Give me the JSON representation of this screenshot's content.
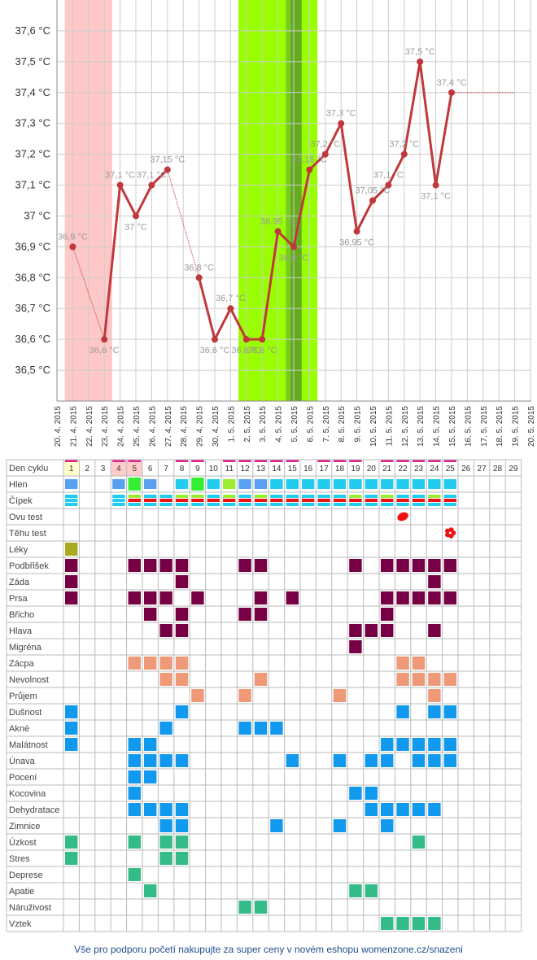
{
  "chart_data": {
    "type": "line",
    "ylim": [
      36.4,
      37.7
    ],
    "y_ticks": [
      "36,5 °C",
      "36,6 °C",
      "36,7 °C",
      "36,8 °C",
      "36,9 °C",
      "37 °C",
      "37,1 °C",
      "37,2 °C",
      "37,3 °C",
      "37,4 °C",
      "37,5 °C",
      "37,6 °C"
    ],
    "y_tick_values": [
      36.5,
      36.6,
      36.7,
      36.8,
      36.9,
      37.0,
      37.1,
      37.2,
      37.3,
      37.4,
      37.5,
      37.6
    ],
    "dates": [
      "20. 4. 2015",
      "21. 4. 2015",
      "22. 4. 2015",
      "23. 4. 2015",
      "24. 4. 2015",
      "25. 4. 2015",
      "26. 4. 2015",
      "27. 4. 2015",
      "28. 4. 2015",
      "29. 4. 2015",
      "30. 4. 2015",
      "1. 5. 2015",
      "2. 5. 2015",
      "3. 5. 2015",
      "4. 5. 2015",
      "5. 5. 2015",
      "6. 5. 2015",
      "7. 5. 2015",
      "8. 5. 2015",
      "9. 5. 2015",
      "10. 5. 2015",
      "11. 5. 2015",
      "12. 5. 2015",
      "13. 5. 2015",
      "14. 5. 2015",
      "15. 5. 2015",
      "16. 5. 2015",
      "17. 5. 2015",
      "18. 5. 2015",
      "19. 5. 2015",
      "20. 5. 2015"
    ],
    "series": [
      {
        "points": [
          {
            "x": "21. 4. 2015",
            "y": 36.9,
            "label": "36,9 °C"
          },
          {
            "x": "23. 4. 2015",
            "y": 36.6,
            "label": "36,6 °C"
          },
          {
            "x": "24. 4. 2015",
            "y": 37.1,
            "label": "37,1 °C"
          },
          {
            "x": "25. 4. 2015",
            "y": 37.0,
            "label": "37 °C"
          },
          {
            "x": "26. 4. 2015",
            "y": 37.1,
            "label": "37,1 °C"
          },
          {
            "x": "27. 4. 2015",
            "y": 37.15,
            "label": "37,15 °C"
          },
          {
            "x": "29. 4. 2015",
            "y": 36.8,
            "label": "36,8 °C"
          },
          {
            "x": "30. 4. 2015",
            "y": 36.6,
            "label": "36,6 °C"
          },
          {
            "x": "1. 5. 2015",
            "y": 36.7,
            "label": "36,7 °C"
          },
          {
            "x": "2. 5. 2015",
            "y": 36.6,
            "label": "36,6 °C"
          },
          {
            "x": "3. 5. 2015",
            "y": 36.6,
            "label": "36,6 °C"
          },
          {
            "x": "4. 5. 2015",
            "y": 36.95,
            "label": "36,95 °C"
          },
          {
            "x": "5. 5. 2015",
            "y": 36.9,
            "label": "36,9 °C"
          },
          {
            "x": "6. 5. 2015",
            "y": 37.15,
            "label": "37,15 °C"
          },
          {
            "x": "7. 5. 2015",
            "y": 37.2,
            "label": "37,2 °C"
          },
          {
            "x": "8. 5. 2015",
            "y": 37.3,
            "label": "37,3 °C"
          },
          {
            "x": "9. 5. 2015",
            "y": 36.95,
            "label": "36,95 °C"
          },
          {
            "x": "10. 5. 2015",
            "y": 37.05,
            "label": "37,05 °C"
          },
          {
            "x": "11. 5. 2015",
            "y": 37.1,
            "label": "37,1 °C"
          },
          {
            "x": "12. 5. 2015",
            "y": 37.2,
            "label": "37,2 °C"
          },
          {
            "x": "13. 5. 2015",
            "y": 37.5,
            "label": "37,5 °C"
          },
          {
            "x": "14. 5. 2015",
            "y": 37.1,
            "label": "37,1 °C"
          },
          {
            "x": "15. 5. 2015",
            "y": 37.4,
            "label": "37,4 °C"
          }
        ],
        "dotted_segments": [
          [
            0,
            1
          ],
          [
            5,
            6
          ]
        ],
        "extension_to": "19. 5. 2015"
      }
    ],
    "colors": {
      "line": "#c0383c",
      "menstruation": "#ffc8c8",
      "fertile": "#99ff00",
      "fertile_peak": "#77cc22",
      "fertile_ovulation": "#66aa22",
      "grid": "#cccccc"
    },
    "menstruation_range": [
      "20. 4. 2015",
      "23. 4. 2015"
    ],
    "fertile_range": [
      "1. 5. 2015",
      "6. 5. 2015"
    ],
    "grid": true
  },
  "cycle_table": {
    "colors": {
      "mucus": "#5aa0f0",
      "mucus_green": "#33ee33",
      "cyan": "#22ccee",
      "red": "#ee1111",
      "green_lt": "#99ee33",
      "purple": "#770044",
      "orange": "#ee9977",
      "blue": "#1199ee",
      "teal": "#33bb88",
      "olive": "#aaaa22",
      "today": "#ffffcc",
      "period": "#ffcccc",
      "marker": "#dd2288"
    },
    "days": [
      "1",
      "2",
      "3",
      "4",
      "5",
      "6",
      "7",
      "8",
      "9",
      "10",
      "11",
      "12",
      "13",
      "14",
      "15",
      "16",
      "17",
      "18",
      "19",
      "20",
      "21",
      "22",
      "23",
      "24",
      "25",
      "26",
      "27",
      "28",
      "29"
    ],
    "marked_days": [
      1,
      4,
      5,
      8,
      9,
      11,
      12,
      13,
      14,
      15,
      17,
      18,
      19,
      21,
      22,
      23,
      24,
      25
    ],
    "rows": [
      {
        "label": "Den cyklu"
      },
      {
        "label": "Hlen"
      },
      {
        "label": "Čípek"
      },
      {
        "label": "Ovu test"
      },
      {
        "label": "Těhu test"
      },
      {
        "label": "Léky"
      },
      {
        "label": "Podbřišek"
      },
      {
        "label": "Záda"
      },
      {
        "label": "Prsa"
      },
      {
        "label": "Břicho"
      },
      {
        "label": "Hlava"
      },
      {
        "label": "Migréna"
      },
      {
        "label": "Zácpa"
      },
      {
        "label": "Nevolnost"
      },
      {
        "label": "Průjem"
      },
      {
        "label": "Dušnost"
      },
      {
        "label": "Akné"
      },
      {
        "label": "Malátnost"
      },
      {
        "label": "Únava"
      },
      {
        "label": "Pocení"
      },
      {
        "label": "Kocovina"
      },
      {
        "label": "Dehydratace"
      },
      {
        "label": "Zimnice"
      },
      {
        "label": "Úzkost"
      },
      {
        "label": "Stres"
      },
      {
        "label": "Deprese"
      },
      {
        "label": "Apatie"
      },
      {
        "label": "Náruživost"
      },
      {
        "label": "Vztek"
      }
    ],
    "hlen": {
      "1": "mucus",
      "4": "mucus",
      "5": "mucus_green",
      "6": "mucus",
      "8": "cyan",
      "9": "mucus_green",
      "10": "cyan",
      "11": "green_lt",
      "12": "mucus",
      "13": "mucus",
      "14": "cyan",
      "15": "cyan",
      "16": "cyan",
      "17": "cyan",
      "18": "cyan",
      "19": "cyan",
      "20": "cyan",
      "21": "cyan",
      "22": "cyan",
      "23": "cyan",
      "24": "cyan",
      "25": "cyan"
    },
    "cipek": {
      "1": [
        "cyan",
        "cyan"
      ],
      "4": [
        "cyan",
        "cyan"
      ],
      "5": [
        "green_lt",
        "red"
      ],
      "6": [
        "cyan",
        "red"
      ],
      "7": [
        "cyan",
        "red"
      ],
      "8": [
        "green_lt",
        "red"
      ],
      "9": [
        "green_lt",
        "red"
      ],
      "10": [
        "cyan",
        "red"
      ],
      "11": [
        "green_lt",
        "red"
      ],
      "12": [
        "cyan",
        "red"
      ],
      "13": [
        "green_lt",
        "red"
      ],
      "14": [
        "cyan",
        "red"
      ],
      "15": [
        "cyan",
        "red"
      ],
      "16": [
        "cyan",
        "red"
      ],
      "17": [
        "cyan",
        "red"
      ],
      "18": [
        "cyan",
        "red"
      ],
      "19": [
        "green_lt",
        "red"
      ],
      "20": [
        "cyan",
        "red"
      ],
      "21": [
        "green_lt",
        "red"
      ],
      "22": [
        "cyan",
        "red"
      ],
      "23": [
        "cyan",
        "red"
      ],
      "24": [
        "green_lt",
        "red"
      ],
      "25": [
        "cyan",
        "red"
      ]
    },
    "ovu_test_day": 22,
    "tehu_test_day": 25,
    "symptoms": {
      "Léky": {
        "color": "olive",
        "days": [
          1
        ]
      },
      "Podbřišek": {
        "color": "purple",
        "days": [
          1,
          5,
          6,
          7,
          8,
          12,
          13,
          19,
          21,
          22,
          23,
          24,
          25
        ]
      },
      "Záda": {
        "color": "purple",
        "days": [
          1,
          8,
          24
        ]
      },
      "Prsa": {
        "color": "purple",
        "days": [
          1,
          5,
          6,
          7,
          9,
          13,
          15,
          21,
          22,
          23,
          24,
          25
        ]
      },
      "Břicho": {
        "color": "purple",
        "days": [
          6,
          8,
          12,
          13,
          21
        ]
      },
      "Hlava": {
        "color": "purple",
        "days": [
          7,
          8,
          19,
          20,
          21,
          24
        ]
      },
      "Migréna": {
        "color": "purple",
        "days": [
          19
        ]
      },
      "Zácpa": {
        "color": "orange",
        "days": [
          5,
          6,
          7,
          8,
          22,
          23
        ]
      },
      "Nevolnost": {
        "color": "orange",
        "days": [
          7,
          8,
          13,
          22,
          23,
          24,
          25
        ]
      },
      "Průjem": {
        "color": "orange",
        "days": [
          9,
          12,
          18,
          24
        ]
      },
      "Dušnost": {
        "color": "blue",
        "days": [
          1,
          8,
          22,
          24,
          25
        ]
      },
      "Akné": {
        "color": "blue",
        "days": [
          1,
          7,
          12,
          13,
          14
        ]
      },
      "Malátnost": {
        "color": "blue",
        "days": [
          1,
          5,
          6,
          21,
          22,
          23,
          24,
          25
        ]
      },
      "Únava": {
        "color": "blue",
        "days": [
          5,
          6,
          7,
          8,
          15,
          18,
          20,
          21,
          23,
          24,
          25
        ]
      },
      "Pocení": {
        "color": "blue",
        "days": [
          5,
          6
        ]
      },
      "Kocovina": {
        "color": "blue",
        "days": [
          5,
          19,
          20
        ]
      },
      "Dehydratace": {
        "color": "blue",
        "days": [
          5,
          6,
          7,
          8,
          20,
          21,
          22,
          23,
          24
        ]
      },
      "Zimnice": {
        "color": "blue",
        "days": [
          7,
          8,
          14,
          18,
          21
        ]
      },
      "Úzkost": {
        "color": "teal",
        "days": [
          1,
          5,
          7,
          8,
          23
        ]
      },
      "Stres": {
        "color": "teal",
        "days": [
          1,
          7,
          8
        ]
      },
      "Deprese": {
        "color": "teal",
        "days": [
          5
        ]
      },
      "Apatie": {
        "color": "teal",
        "days": [
          6,
          19,
          20
        ]
      },
      "Náruživost": {
        "color": "teal",
        "days": [
          12,
          13
        ]
      },
      "Vztek": {
        "color": "teal",
        "days": [
          21,
          22,
          23,
          24
        ]
      }
    }
  },
  "footer": {
    "text": "Vše pro podporu početí nakupujte za super ceny v novém eshopu womenzone.cz/snazeni"
  }
}
